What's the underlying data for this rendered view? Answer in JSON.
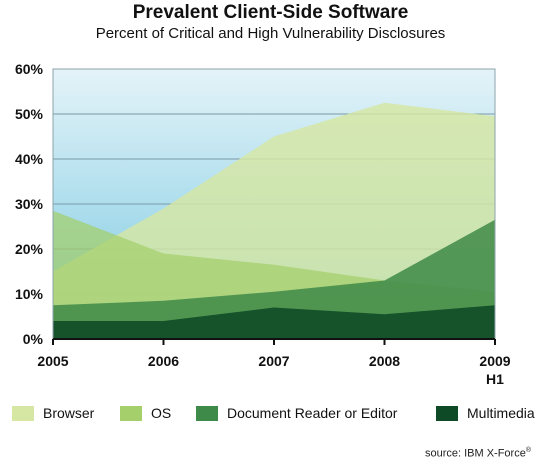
{
  "title": "Prevalent Client-Side Software",
  "subtitle": "Percent of Critical and High Vulnerability Disclosures",
  "source": "source: IBM X-Force",
  "source_mark": "®",
  "chart_data": {
    "type": "area",
    "title": "Prevalent Client-Side Software",
    "subtitle": "Percent of Critical and High Vulnerability Disclosures",
    "xlabel": "",
    "ylabel": "",
    "categories": [
      "2005",
      "2006",
      "2007",
      "2008",
      "2009"
    ],
    "category_sublabels": [
      "",
      "",
      "",
      "",
      "H1"
    ],
    "ylim": [
      0,
      60
    ],
    "yticks": [
      0,
      10,
      20,
      30,
      40,
      50,
      60
    ],
    "ytick_labels": [
      "0%",
      "10%",
      "20%",
      "30%",
      "40%",
      "50%",
      "60%"
    ],
    "grid": true,
    "legend": "bottom",
    "series": [
      {
        "name": "Browser",
        "values": [
          15,
          29,
          45,
          52.5,
          49.5
        ],
        "color": "#d6e6a3"
      },
      {
        "name": "OS",
        "values": [
          28.5,
          19,
          16.5,
          13,
          10.5
        ],
        "color": "#a4cf6b"
      },
      {
        "name": "Document Reader or Editor",
        "values": [
          7.5,
          8.5,
          10.5,
          13,
          26.5
        ],
        "color": "#3e8a48"
      },
      {
        "name": "Multimedia",
        "values": [
          4,
          4,
          7,
          5.5,
          7.5
        ],
        "color": "#0f4a26"
      }
    ]
  }
}
